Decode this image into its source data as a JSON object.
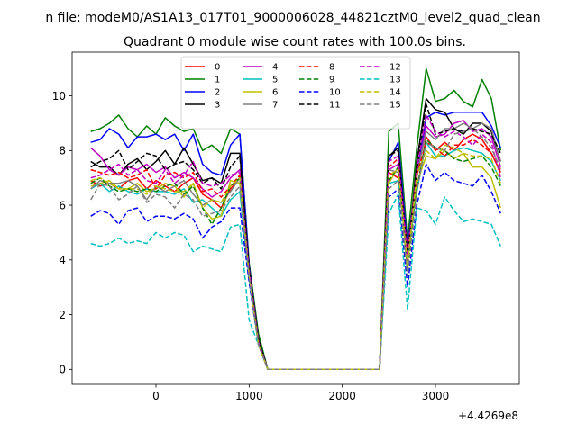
{
  "chart_data": {
    "type": "line",
    "suptitle": "n file: modeM0/AS1A13_017T01_9000006028_44821cztM0_level2_quad_clean",
    "title": "Quadrant 0 module wise count rates with 100.0s bins.",
    "xlabel": "",
    "ylabel": "",
    "x_offset_label": "+4.4269e8",
    "xlim": [
      -900,
      3900
    ],
    "ylim": [
      -0.55,
      11.6
    ],
    "x_ticks": [
      0,
      1000,
      2000,
      3000
    ],
    "x_tick_labels": [
      "0",
      "1000",
      "2000",
      "3000"
    ],
    "y_ticks": [
      0,
      2,
      4,
      6,
      8,
      10
    ],
    "y_tick_labels": [
      "0",
      "2",
      "4",
      "6",
      "8",
      "10"
    ],
    "grid": false,
    "legend": {
      "placement": "top-center",
      "columns": 4
    },
    "x": [
      -700,
      -600,
      -500,
      -400,
      -300,
      -200,
      -100,
      0,
      100,
      200,
      300,
      400,
      500,
      600,
      700,
      800,
      900,
      1000,
      1100,
      1200,
      1300,
      1400,
      1500,
      1600,
      1700,
      1800,
      1900,
      2000,
      2100,
      2200,
      2300,
      2400,
      2500,
      2600,
      2700,
      2800,
      2900,
      3000,
      3100,
      3200,
      3300,
      3400,
      3500,
      3600,
      3700
    ],
    "series": [
      {
        "name": "0",
        "color": "#ff0000",
        "dash": false,
        "values": [
          6.9,
          6.7,
          6.8,
          6.6,
          6.9,
          7.0,
          6.6,
          6.9,
          6.7,
          6.5,
          6.8,
          7.0,
          6.4,
          6.2,
          5.9,
          6.6,
          7.0,
          3.7,
          1.0,
          0,
          0,
          0,
          0,
          0,
          0,
          0,
          0,
          0,
          0,
          0,
          0,
          0,
          7.2,
          7.0,
          4.4,
          6.5,
          8.5,
          8.0,
          8.3,
          8.0,
          8.4,
          8.6,
          8.4,
          7.9,
          7.2
        ]
      },
      {
        "name": "1",
        "color": "#008000",
        "dash": false,
        "values": [
          8.7,
          8.8,
          9.0,
          9.3,
          8.8,
          8.5,
          8.9,
          8.6,
          9.2,
          8.9,
          8.7,
          8.8,
          8.0,
          8.2,
          7.9,
          8.8,
          8.6,
          3.9,
          1.3,
          0,
          0,
          0,
          0,
          0,
          0,
          0,
          0,
          0,
          0,
          0,
          0,
          0,
          8.7,
          9.0,
          4.7,
          8.1,
          11.0,
          9.8,
          9.9,
          10.2,
          9.8,
          9.6,
          10.6,
          9.9,
          8.0
        ]
      },
      {
        "name": "2",
        "color": "#0000ff",
        "dash": false,
        "values": [
          8.3,
          8.4,
          8.8,
          8.6,
          8.1,
          8.5,
          8.5,
          8.6,
          8.4,
          8.6,
          8.0,
          8.6,
          7.5,
          7.2,
          7.1,
          8.2,
          8.6,
          3.8,
          1.1,
          0,
          0,
          0,
          0,
          0,
          0,
          0,
          0,
          0,
          0,
          0,
          0,
          0,
          7.6,
          8.3,
          4.5,
          7.1,
          9.2,
          9.4,
          9.3,
          9.4,
          9.4,
          9.4,
          9.4,
          8.9,
          8.1
        ]
      },
      {
        "name": "3",
        "color": "#000000",
        "dash": false,
        "values": [
          7.6,
          7.4,
          7.4,
          7.1,
          7.5,
          7.7,
          7.3,
          7.6,
          8.0,
          7.5,
          8.1,
          7.5,
          6.9,
          7.0,
          6.8,
          7.9,
          7.9,
          3.7,
          1.1,
          0,
          0,
          0,
          0,
          0,
          0,
          0,
          0,
          0,
          0,
          0,
          0,
          0,
          7.8,
          8.1,
          4.0,
          7.6,
          9.9,
          9.5,
          9.4,
          8.8,
          8.6,
          9.0,
          9.0,
          8.7,
          7.6
        ]
      },
      {
        "name": "4",
        "color": "#bf00bf",
        "dash": false,
        "values": [
          8.1,
          7.8,
          7.3,
          7.1,
          7.4,
          7.3,
          7.5,
          7.2,
          7.4,
          7.0,
          7.2,
          7.0,
          6.6,
          6.3,
          6.5,
          7.0,
          7.3,
          3.6,
          1.0,
          0,
          0,
          0,
          0,
          0,
          0,
          0,
          0,
          0,
          0,
          0,
          0,
          0,
          7.3,
          7.5,
          4.3,
          7.0,
          8.9,
          8.5,
          8.6,
          9.0,
          9.1,
          8.7,
          8.8,
          8.5,
          7.4
        ]
      },
      {
        "name": "5",
        "color": "#00bfbf",
        "dash": false,
        "values": [
          6.6,
          6.8,
          6.5,
          6.7,
          6.5,
          6.4,
          6.6,
          6.5,
          6.5,
          6.4,
          6.6,
          6.1,
          6.2,
          5.9,
          5.6,
          6.2,
          6.5,
          3.3,
          0.9,
          0,
          0,
          0,
          0,
          0,
          0,
          0,
          0,
          0,
          0,
          0,
          0,
          0,
          6.8,
          6.9,
          4.1,
          6.5,
          8.3,
          7.8,
          7.8,
          8.0,
          8.1,
          8.0,
          7.9,
          7.6,
          6.9
        ]
      },
      {
        "name": "6",
        "color": "#bfbf00",
        "dash": false,
        "values": [
          6.7,
          6.8,
          6.9,
          6.6,
          6.6,
          6.8,
          6.5,
          6.6,
          6.8,
          6.7,
          6.3,
          6.8,
          5.9,
          5.5,
          5.6,
          6.9,
          6.8,
          3.4,
          0.9,
          0,
          0,
          0,
          0,
          0,
          0,
          0,
          0,
          0,
          0,
          0,
          0,
          0,
          6.8,
          7.4,
          4.2,
          6.8,
          7.8,
          7.7,
          8.0,
          7.7,
          7.9,
          7.4,
          7.4,
          7.0,
          5.9
        ]
      },
      {
        "name": "7",
        "color": "#808080",
        "dash": false,
        "values": [
          6.6,
          6.9,
          6.8,
          6.8,
          6.9,
          6.7,
          6.2,
          6.7,
          6.5,
          6.7,
          6.9,
          6.4,
          6.0,
          6.2,
          6.1,
          6.5,
          7.0,
          3.5,
          1.0,
          0,
          0,
          0,
          0,
          0,
          0,
          0,
          0,
          0,
          0,
          0,
          0,
          0,
          7.3,
          7.2,
          4.3,
          7.1,
          8.7,
          8.4,
          8.8,
          8.8,
          9.0,
          8.8,
          9.0,
          8.8,
          7.6
        ]
      },
      {
        "name": "8",
        "color": "#ff0000",
        "dash": true,
        "values": [
          7.3,
          7.2,
          7.1,
          7.2,
          7.0,
          7.1,
          7.3,
          6.6,
          7.1,
          7.2,
          7.0,
          7.2,
          6.5,
          6.6,
          6.3,
          6.7,
          7.1,
          3.6,
          1.0,
          0,
          0,
          0,
          0,
          0,
          0,
          0,
          0,
          0,
          0,
          0,
          0,
          0,
          7.4,
          7.7,
          4.3,
          7.1,
          8.3,
          8.1,
          7.8,
          8.2,
          8.2,
          8.4,
          8.2,
          7.9,
          7.3
        ]
      },
      {
        "name": "9",
        "color": "#008000",
        "dash": true,
        "values": [
          6.8,
          7.0,
          6.7,
          6.5,
          6.6,
          6.5,
          6.6,
          6.5,
          6.7,
          6.8,
          6.4,
          6.7,
          5.9,
          5.3,
          5.9,
          6.7,
          7.0,
          3.5,
          1.0,
          0,
          0,
          0,
          0,
          0,
          0,
          0,
          0,
          0,
          0,
          0,
          0,
          0,
          6.9,
          7.4,
          3.6,
          6.6,
          8.4,
          8.1,
          8.0,
          7.7,
          7.6,
          7.7,
          7.8,
          7.4,
          6.7
        ]
      },
      {
        "name": "10",
        "color": "#0000ff",
        "dash": true,
        "values": [
          5.6,
          5.8,
          5.7,
          5.3,
          5.8,
          5.9,
          5.4,
          5.6,
          5.6,
          5.5,
          5.7,
          5.5,
          4.8,
          5.2,
          5.4,
          5.9,
          5.9,
          3.2,
          0.9,
          0,
          0,
          0,
          0,
          0,
          0,
          0,
          0,
          0,
          0,
          0,
          0,
          0,
          6.3,
          6.6,
          3.0,
          6.0,
          7.5,
          6.9,
          7.2,
          6.9,
          6.8,
          6.7,
          7.1,
          6.5,
          5.7
        ]
      },
      {
        "name": "11",
        "color": "#000000",
        "dash": true,
        "values": [
          7.4,
          7.6,
          7.7,
          8.0,
          7.3,
          7.6,
          7.9,
          7.8,
          7.3,
          7.5,
          7.6,
          7.3,
          6.8,
          7.0,
          6.6,
          7.4,
          7.8,
          3.7,
          1.1,
          0,
          0,
          0,
          0,
          0,
          0,
          0,
          0,
          0,
          0,
          0,
          0,
          0,
          7.8,
          8.0,
          4.2,
          7.2,
          9.7,
          8.6,
          8.7,
          8.8,
          8.7,
          8.8,
          8.7,
          8.6,
          7.9
        ]
      },
      {
        "name": "12",
        "color": "#bf00bf",
        "dash": true,
        "values": [
          7.0,
          7.1,
          7.3,
          7.5,
          7.1,
          7.3,
          6.9,
          6.8,
          7.3,
          6.8,
          7.1,
          7.6,
          6.8,
          6.7,
          6.8,
          7.1,
          7.2,
          3.6,
          1.0,
          0,
          0,
          0,
          0,
          0,
          0,
          0,
          0,
          0,
          0,
          0,
          0,
          0,
          7.6,
          7.8,
          4.0,
          7.3,
          9.3,
          8.7,
          8.5,
          8.7,
          8.5,
          8.2,
          8.6,
          8.3,
          7.0
        ]
      },
      {
        "name": "13",
        "color": "#00bfbf",
        "dash": true,
        "values": [
          4.6,
          4.5,
          4.6,
          4.8,
          4.6,
          4.7,
          4.6,
          5.0,
          4.8,
          5.0,
          4.9,
          4.3,
          4.5,
          4.4,
          4.3,
          5.2,
          5.3,
          1.8,
          0.9,
          0,
          0,
          0,
          0,
          0,
          0,
          0,
          0,
          0,
          0,
          0,
          0,
          0,
          5.7,
          6.4,
          2.2,
          5.9,
          5.8,
          5.3,
          6.3,
          5.8,
          5.4,
          5.5,
          5.4,
          5.3,
          4.5
        ]
      },
      {
        "name": "14",
        "color": "#bfbf00",
        "dash": true,
        "values": [
          6.9,
          7.0,
          6.8,
          6.6,
          6.6,
          6.6,
          6.4,
          6.7,
          6.6,
          6.5,
          6.5,
          6.8,
          5.9,
          6.2,
          6.1,
          6.7,
          7.0,
          3.4,
          0.9,
          0,
          0,
          0,
          0,
          0,
          0,
          0,
          0,
          0,
          0,
          0,
          0,
          0,
          7.1,
          7.3,
          3.8,
          7.1,
          8.0,
          7.7,
          8.2,
          8.1,
          7.9,
          7.8,
          7.8,
          7.7,
          6.8
        ]
      },
      {
        "name": "15",
        "color": "#808080",
        "dash": true,
        "values": [
          6.2,
          6.8,
          6.7,
          6.2,
          6.4,
          6.7,
          6.1,
          6.4,
          6.3,
          5.9,
          6.4,
          6.2,
          5.6,
          5.7,
          5.8,
          6.3,
          6.7,
          3.4,
          0.9,
          0,
          0,
          0,
          0,
          0,
          0,
          0,
          0,
          0,
          0,
          0,
          0,
          0,
          6.6,
          6.9,
          3.4,
          6.5,
          8.3,
          8.1,
          8.0,
          8.6,
          8.7,
          8.8,
          8.5,
          8.1,
          7.3
        ]
      }
    ]
  }
}
